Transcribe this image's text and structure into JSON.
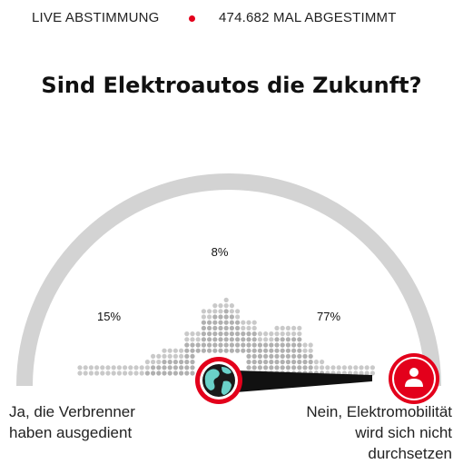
{
  "header": {
    "live_label": "LIVE ABSTIMMUNG",
    "vote_count_label": "474.682 MAL ABGESTIMMT",
    "accent_color": "#e3001b"
  },
  "question": {
    "title": "Sind Elektroautos die Zukunft?"
  },
  "options": [
    {
      "lines": [
        "Ja, die Verbrenner",
        "haben ausgedient"
      ],
      "percent_label": "15%"
    },
    {
      "lines": [],
      "percent_label": "8%"
    },
    {
      "lines": [
        "Nein, Elektromobilität",
        "wird sich nicht",
        "durchsetzen"
      ],
      "percent_label": "77%"
    }
  ],
  "chart_data": {
    "type": "bar",
    "categories": [
      "Ja, die Verbrenner haben ausgedient",
      "",
      "Nein, Elektromobilität wird sich nicht durchsetzen"
    ],
    "values": [
      15,
      8,
      77
    ],
    "slider_value_percent": 90,
    "icons": {
      "knob": "globe-icon",
      "end": "user-icon"
    }
  }
}
